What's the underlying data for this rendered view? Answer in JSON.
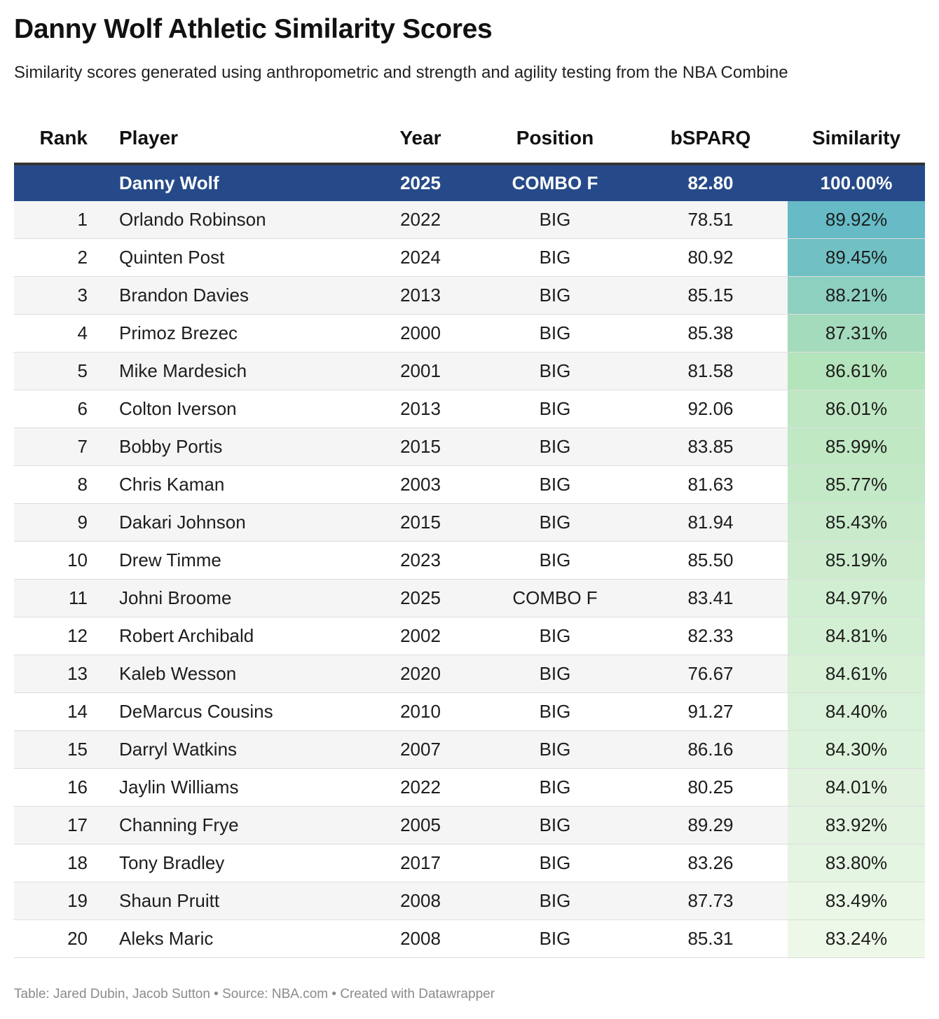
{
  "title": "Danny Wolf Athletic Similarity Scores",
  "subtitle": "Similarity scores generated using anthropometric and strength and agility testing from the NBA Combine",
  "footer": "Table: Jared Dubin, Jacob Sutton • Source: NBA.com • Created with Datawrapper",
  "colors": {
    "highlight_row": "#264a89",
    "scale_high": "#66bbc6",
    "scale_mid": "#b5e4bb",
    "scale_low": "#eef8e9"
  },
  "chart_data": {
    "type": "table",
    "title": "Danny Wolf Athletic Similarity Scores",
    "columns": [
      "Rank",
      "Player",
      "Year",
      "Position",
      "bSPARQ",
      "Similarity"
    ],
    "highlight": {
      "rank": "",
      "player": "Danny Wolf",
      "year": "2025",
      "position": "COMBO F",
      "bsparq": "82.80",
      "similarity": "100.00%"
    },
    "rows": [
      {
        "rank": "1",
        "player": "Orlando Robinson",
        "year": "2022",
        "position": "BIG",
        "bsparq": "78.51",
        "similarity": "89.92%",
        "value": 89.92
      },
      {
        "rank": "2",
        "player": "Quinten Post",
        "year": "2024",
        "position": "BIG",
        "bsparq": "80.92",
        "similarity": "89.45%",
        "value": 89.45
      },
      {
        "rank": "3",
        "player": "Brandon Davies",
        "year": "2013",
        "position": "BIG",
        "bsparq": "85.15",
        "similarity": "88.21%",
        "value": 88.21
      },
      {
        "rank": "4",
        "player": "Primoz Brezec",
        "year": "2000",
        "position": "BIG",
        "bsparq": "85.38",
        "similarity": "87.31%",
        "value": 87.31
      },
      {
        "rank": "5",
        "player": "Mike Mardesich",
        "year": "2001",
        "position": "BIG",
        "bsparq": "81.58",
        "similarity": "86.61%",
        "value": 86.61
      },
      {
        "rank": "6",
        "player": "Colton Iverson",
        "year": "2013",
        "position": "BIG",
        "bsparq": "92.06",
        "similarity": "86.01%",
        "value": 86.01
      },
      {
        "rank": "7",
        "player": "Bobby Portis",
        "year": "2015",
        "position": "BIG",
        "bsparq": "83.85",
        "similarity": "85.99%",
        "value": 85.99
      },
      {
        "rank": "8",
        "player": "Chris Kaman",
        "year": "2003",
        "position": "BIG",
        "bsparq": "81.63",
        "similarity": "85.77%",
        "value": 85.77
      },
      {
        "rank": "9",
        "player": "Dakari Johnson",
        "year": "2015",
        "position": "BIG",
        "bsparq": "81.94",
        "similarity": "85.43%",
        "value": 85.43
      },
      {
        "rank": "10",
        "player": "Drew Timme",
        "year": "2023",
        "position": "BIG",
        "bsparq": "85.50",
        "similarity": "85.19%",
        "value": 85.19
      },
      {
        "rank": "11",
        "player": "Johni Broome",
        "year": "2025",
        "position": "COMBO F",
        "bsparq": "83.41",
        "similarity": "84.97%",
        "value": 84.97
      },
      {
        "rank": "12",
        "player": "Robert Archibald",
        "year": "2002",
        "position": "BIG",
        "bsparq": "82.33",
        "similarity": "84.81%",
        "value": 84.81
      },
      {
        "rank": "13",
        "player": "Kaleb Wesson",
        "year": "2020",
        "position": "BIG",
        "bsparq": "76.67",
        "similarity": "84.61%",
        "value": 84.61
      },
      {
        "rank": "14",
        "player": "DeMarcus Cousins",
        "year": "2010",
        "position": "BIG",
        "bsparq": "91.27",
        "similarity": "84.40%",
        "value": 84.4
      },
      {
        "rank": "15",
        "player": "Darryl Watkins",
        "year": "2007",
        "position": "BIG",
        "bsparq": "86.16",
        "similarity": "84.30%",
        "value": 84.3
      },
      {
        "rank": "16",
        "player": "Jaylin Williams",
        "year": "2022",
        "position": "BIG",
        "bsparq": "80.25",
        "similarity": "84.01%",
        "value": 84.01
      },
      {
        "rank": "17",
        "player": "Channing Frye",
        "year": "2005",
        "position": "BIG",
        "bsparq": "89.29",
        "similarity": "83.92%",
        "value": 83.92
      },
      {
        "rank": "18",
        "player": "Tony Bradley",
        "year": "2017",
        "position": "BIG",
        "bsparq": "83.26",
        "similarity": "83.80%",
        "value": 83.8
      },
      {
        "rank": "19",
        "player": "Shaun Pruitt",
        "year": "2008",
        "position": "BIG",
        "bsparq": "87.73",
        "similarity": "83.49%",
        "value": 83.49
      },
      {
        "rank": "20",
        "player": "Aleks Maric",
        "year": "2008",
        "position": "BIG",
        "bsparq": "85.31",
        "similarity": "83.24%",
        "value": 83.24
      }
    ]
  }
}
